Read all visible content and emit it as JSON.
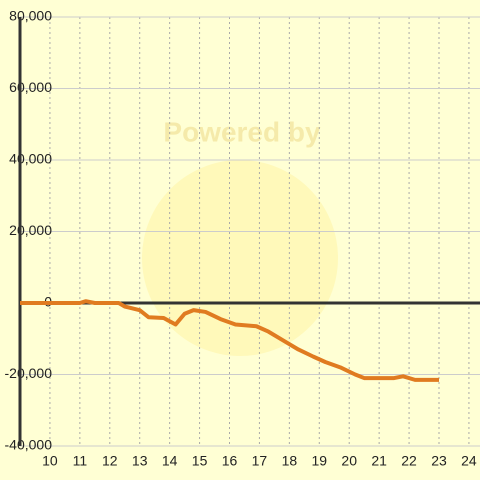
{
  "chart_data": {
    "type": "line",
    "watermark": "Powered by",
    "x": [
      9,
      10,
      11,
      11.2,
      11.5,
      12,
      12.3,
      12.5,
      13,
      13.3,
      13.8,
      14.2,
      14.5,
      14.8,
      15.2,
      15.7,
      16.2,
      16.9,
      17.3,
      17.8,
      18.3,
      18.8,
      19.2,
      19.7,
      20.2,
      20.5,
      21,
      21.5,
      21.8,
      22.2,
      23
    ],
    "series": [
      {
        "color": "#e07b20",
        "values": [
          0,
          0,
          0,
          500,
          0,
          0,
          0,
          -1000,
          -2000,
          -4000,
          -4200,
          -6000,
          -3000,
          -2000,
          -2500,
          -4500,
          -6000,
          -6500,
          -8000,
          -10500,
          -13000,
          -15000,
          -16500,
          -18000,
          -20000,
          -21000,
          -21000,
          -21000,
          -20500,
          -21500,
          -21500
        ]
      }
    ],
    "xlim": [
      9,
      24.37
    ],
    "ylim": [
      -40000,
      80000
    ],
    "xticks": [
      10,
      11,
      12,
      13,
      14,
      15,
      16,
      17,
      18,
      19,
      20,
      21,
      22,
      23,
      24
    ],
    "yticks": [
      {
        "value": -40000,
        "label": "-40,000"
      },
      {
        "value": -20000,
        "label": "-20,000"
      },
      0,
      {
        "value": 20000,
        "label": "20,000"
      },
      {
        "value": 40000,
        "label": "40,000"
      },
      {
        "value": 60000,
        "label": "60,000"
      },
      {
        "value": 80000,
        "label": "80,000"
      }
    ],
    "grid": true
  }
}
